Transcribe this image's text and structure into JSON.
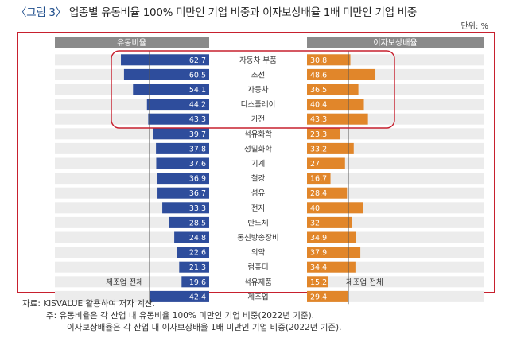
{
  "title": {
    "label": "〈그림 3〉",
    "text": "업종별 유동비율 100% 미만인 기업 비중과 이자보상배율 1배 미만인 기업 비중"
  },
  "unit": "단위: %",
  "chart_data": {
    "type": "bar",
    "orientation": "horizontal-butterfly",
    "categories": [
      "자동차 부품",
      "조선",
      "자동차",
      "디스플레이",
      "가전",
      "석유화학",
      "정밀화학",
      "기계",
      "철강",
      "섬유",
      "전지",
      "반도체",
      "통신방송장비",
      "의약",
      "컴퓨터",
      "석유제품",
      "제조업"
    ],
    "series": [
      {
        "name": "유동비율",
        "color": "#2e4d9c",
        "values": [
          62.7,
          60.5,
          54.1,
          44.2,
          43.3,
          39.7,
          37.8,
          37.6,
          36.9,
          36.7,
          33.3,
          28.5,
          24.8,
          22.6,
          21.3,
          19.6,
          42.4
        ]
      },
      {
        "name": "이자보상배율",
        "color": "#e1862a",
        "values": [
          30.8,
          48.6,
          36.5,
          40.4,
          43.3,
          23.3,
          33.2,
          27,
          16.7,
          28.4,
          40,
          32,
          34.9,
          37.9,
          34.4,
          15.2,
          29.4
        ]
      }
    ],
    "value_labels": {
      "left": [
        "62.7",
        "60.5",
        "54.1",
        "44.2",
        "43.3",
        "39.7",
        "37.8",
        "37.6",
        "36.9",
        "36.7",
        "33.3",
        "28.5",
        "24.8",
        "22.6",
        "21.3",
        "19.6",
        "42.4"
      ],
      "right": [
        "30.8",
        "48.6",
        "36.5",
        "40.4",
        "43.3",
        "23.3",
        "33.2",
        "27",
        "16.7",
        "28.4",
        "40",
        "32",
        "34.9",
        "37.9",
        "34.4",
        "15.2",
        "29.4"
      ]
    },
    "reference_lines": [
      {
        "series": "유동비율",
        "label": "제조업 전체",
        "value": 42.4
      },
      {
        "series": "이자보상배율",
        "label": "제조업 전체",
        "value": 29.4
      }
    ],
    "highlighted_categories": [
      "자동차 부품",
      "조선",
      "자동차",
      "디스플레이",
      "가전"
    ],
    "xlim": [
      0,
      70
    ]
  },
  "notes": {
    "source": "자료: KISVALUE 활용하여 저자 계산.",
    "note1": "주: 유동비율은 각 산업 내 유동비율 100% 미만인 기업 비중(2022년 기준).",
    "note2": "이자보상배율은 각 산업 내 이자보상배율 1배 미만인 기업 비중(2022년 기준)."
  },
  "colors": {
    "left_bar": "#2e4d9c",
    "right_bar": "#e1862a",
    "header_bg": "#8a8a8a",
    "row_bg": "#ececec",
    "highlight": "#c7202e"
  }
}
